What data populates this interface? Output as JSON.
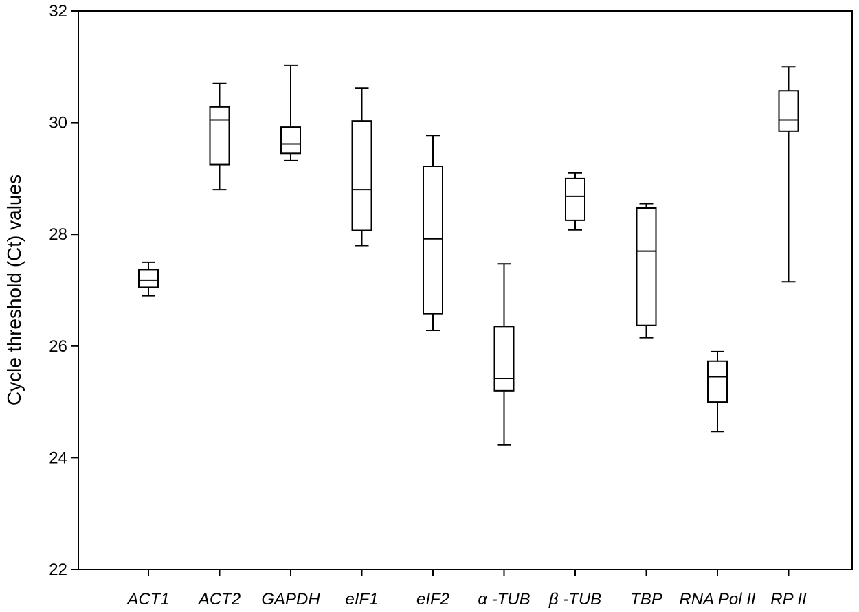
{
  "chart_data": {
    "type": "box",
    "title": "",
    "xlabel": "",
    "ylabel": "Cycle threshold (Ct) values",
    "ylim": [
      22,
      32
    ],
    "yticks": [
      22,
      24,
      26,
      28,
      30,
      32
    ],
    "grid": false,
    "categories": [
      "ACT1",
      "ACT2",
      "GAPDH",
      "eIF1",
      "eIF2",
      "α -TUB",
      "β -TUB",
      "TBP",
      "RNA Pol II",
      "RP II"
    ],
    "boxes": [
      {
        "name": "ACT1",
        "whisker_low": 26.9,
        "q1": 27.05,
        "median": 27.18,
        "q3": 27.37,
        "whisker_high": 27.5
      },
      {
        "name": "ACT2",
        "whisker_low": 28.8,
        "q1": 29.25,
        "median": 30.05,
        "q3": 30.28,
        "whisker_high": 30.7
      },
      {
        "name": "GAPDH",
        "whisker_low": 29.32,
        "q1": 29.45,
        "median": 29.62,
        "q3": 29.92,
        "whisker_high": 31.03
      },
      {
        "name": "eIF1",
        "whisker_low": 27.8,
        "q1": 28.07,
        "median": 28.8,
        "q3": 30.03,
        "whisker_high": 30.62
      },
      {
        "name": "eIF2",
        "whisker_low": 26.28,
        "q1": 26.58,
        "median": 27.92,
        "q3": 29.22,
        "whisker_high": 29.77
      },
      {
        "name": "α -TUB",
        "whisker_low": 24.23,
        "q1": 25.2,
        "median": 25.42,
        "q3": 26.35,
        "whisker_high": 27.47
      },
      {
        "name": "β -TUB",
        "whisker_low": 28.08,
        "q1": 28.25,
        "median": 28.68,
        "q3": 29.0,
        "whisker_high": 29.1
      },
      {
        "name": "TBP",
        "whisker_low": 26.15,
        "q1": 26.37,
        "median": 27.7,
        "q3": 28.47,
        "whisker_high": 28.55
      },
      {
        "name": "RNA Pol II",
        "whisker_low": 24.47,
        "q1": 25.0,
        "median": 25.45,
        "q3": 25.73,
        "whisker_high": 25.9
      },
      {
        "name": "RP II",
        "whisker_low": 27.15,
        "q1": 29.85,
        "median": 30.05,
        "q3": 30.57,
        "whisker_high": 31.0
      }
    ]
  }
}
